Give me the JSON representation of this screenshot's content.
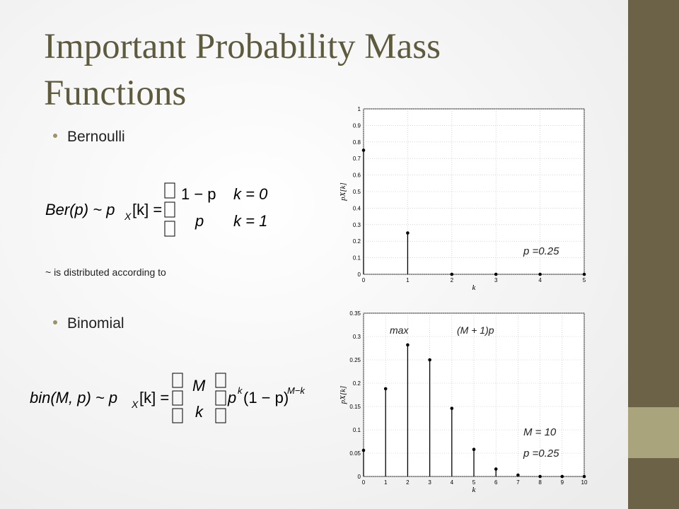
{
  "title": [
    "Important Probability Mass",
    "Functions"
  ],
  "bullets": [
    "Bernoulli",
    "Binomial"
  ],
  "note": "~ is distributed according to",
  "bernoulli_formula": {
    "lhs": "Ber(p) ~ p",
    "sub": "X",
    "eq": "[k] =",
    "cases": [
      [
        "1 − p",
        "k = 0"
      ],
      [
        "p",
        "k = 1"
      ]
    ]
  },
  "binomial_formula": {
    "lhs": "bin(M, p) ~ p",
    "sub": "X",
    "eq": "[k] =",
    "top": "M",
    "bottom": "k",
    "base": "p",
    "sup1": "k",
    "factor": "(1 − p)",
    "sup2": "M−k"
  },
  "chart_data": [
    {
      "type": "stem",
      "ylabel": "pX[k]",
      "xlabel": "k",
      "x": [
        0,
        1,
        2,
        3,
        4,
        5
      ],
      "values": [
        0.75,
        0.25,
        0,
        0,
        0,
        0
      ],
      "color": "#000000",
      "xlim": [
        0,
        5
      ],
      "xticks": [
        0,
        1,
        2,
        3,
        4,
        5
      ],
      "ylim": [
        0,
        1
      ],
      "yticks": [
        0,
        0.1,
        0.2,
        0.3,
        0.4,
        0.5,
        0.6,
        0.7,
        0.8,
        0.9,
        1
      ],
      "grid": true,
      "annotations": [
        "p =0.25"
      ]
    },
    {
      "type": "stem",
      "ylabel": "pX[k]",
      "xlabel": "k",
      "x": [
        0,
        1,
        2,
        3,
        4,
        5,
        6,
        7,
        8,
        9,
        10
      ],
      "values": [
        0.056,
        0.188,
        0.282,
        0.25,
        0.146,
        0.058,
        0.016,
        0.003,
        0,
        0,
        0
      ],
      "color": "#000000",
      "xlim": [
        0,
        10
      ],
      "xticks": [
        0,
        1,
        2,
        3,
        4,
        5,
        6,
        7,
        8,
        9,
        10
      ],
      "ylim": [
        0,
        0.35
      ],
      "yticks": [
        0,
        0.05,
        0.1,
        0.15,
        0.2,
        0.25,
        0.3,
        0.35
      ],
      "grid": true,
      "annotations": [
        "max",
        "(M + 1)p",
        "M = 10",
        "p =0.25"
      ]
    }
  ]
}
